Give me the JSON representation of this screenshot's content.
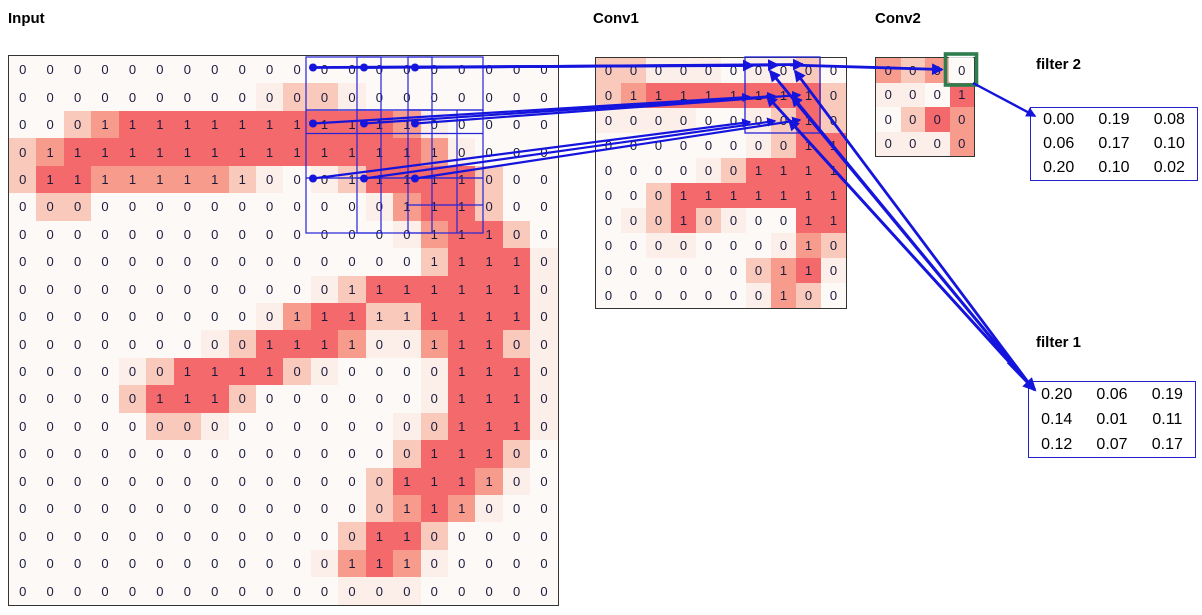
{
  "panels": {
    "input": {
      "title": "Input",
      "values": [
        "00000000000000000000",
        "00000000000000000000",
        "00011111111111100000",
        "01111111111111110000",
        "01111111100011111000",
        "00000000000000111000",
        "00000000000000011100",
        "00000000000000011110",
        "00000000000011111110",
        "00000000001111111110",
        "00000000011110011100",
        "00000011110000001110",
        "00000111000000001110",
        "00000000000000001110",
        "00000000000000011100",
        "00000000000000111100",
        "00000000000000111000",
        "00000000000001100000",
        "00000000000011100000",
        "00000000000000000000"
      ],
      "intensity": [
        "00000000000000000000",
        "00000000012210000000",
        "00234444444444310000",
        "23444444444444431000",
        "24433333210124444200",
        "02200000000001344200",
        "00000000000000134420",
        "00000000000000024441",
        "00000000000124444441",
        "00000000013442244441",
        "00000001244431134421",
        "00001244442100014441",
        "00002444200000014441",
        "00000221000000124441",
        "00000000000000244420",
        "00000000000002444310",
        "00000000000002343100",
        "00000000000024420000",
        "00000000000134310000",
        "00000000000011100000"
      ]
    },
    "conv1": {
      "title": "Conv1",
      "values": [
        "0000000000",
        "0111111110",
        "0000000010",
        "0000000011",
        "0000001111",
        "0001111111",
        "0001000011",
        "0000000010",
        "0000000110",
        "0000000100"
      ],
      "intensity": [
        "2211101120",
        "2344444442",
        "1111001242",
        "0000001244",
        "0000124444",
        "0024444444",
        "0124210044",
        "0011000132",
        "0000002341",
        "0000001320"
      ]
    },
    "conv2": {
      "title": "Conv2",
      "values": [
        "0000",
        "0001",
        "0000",
        "0000"
      ],
      "intensity": [
        "3230",
        "1104",
        "0243",
        "1113"
      ]
    },
    "filter1": {
      "label": "filter 1",
      "rows": [
        [
          "0.20",
          "0.06",
          "0.19"
        ],
        [
          "0.14",
          "0.01",
          "0.11"
        ],
        [
          "0.12",
          "0.07",
          "0.17"
        ]
      ]
    },
    "filter2": {
      "label": "filter 2",
      "rows": [
        [
          "0.00",
          "0.19",
          "0.08"
        ],
        [
          "0.06",
          "0.17",
          "0.10"
        ],
        [
          "0.20",
          "0.10",
          "0.02"
        ]
      ]
    }
  },
  "colors": {
    "heat": [
      "#fdf9f7",
      "#fceee8",
      "#f9cabc",
      "#f79c8d",
      "#f4696b"
    ],
    "digit": "#1a1a3c",
    "line_blue": "#1414dd",
    "box_blue": "#2424d8",
    "green_box": "#2e7d4f",
    "table_border": "#2323cc",
    "grid_border": "#333333"
  }
}
